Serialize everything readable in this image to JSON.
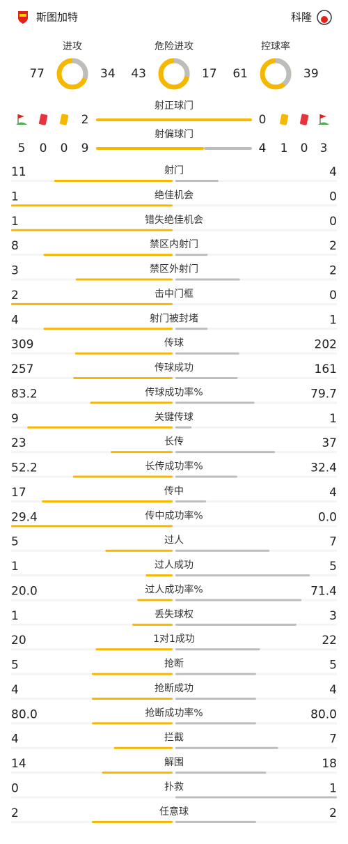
{
  "header": {
    "home": "斯图加特",
    "away": "科隆"
  },
  "donuts": [
    {
      "label": "进攻",
      "home": 77,
      "away": 34
    },
    {
      "label": "危险进攻",
      "home": 43,
      "away": 17
    },
    {
      "label": "控球率",
      "home": 61,
      "away": 39
    }
  ],
  "cards": {
    "home": {
      "corners": 5,
      "red": 0,
      "yellow": 0
    },
    "away": {
      "yellow": 1,
      "red": 0,
      "corners": 3
    }
  },
  "shots": [
    {
      "label": "射正球门",
      "home": 2,
      "away": 0
    },
    {
      "label": "射偏球门",
      "home": 9,
      "away": 4
    }
  ],
  "stats": [
    {
      "label": "射门",
      "home": 11,
      "away": 4
    },
    {
      "label": "绝佳机会",
      "home": 1,
      "away": 0
    },
    {
      "label": "错失绝佳机会",
      "home": 1,
      "away": 0
    },
    {
      "label": "禁区内射门",
      "home": 8,
      "away": 2
    },
    {
      "label": "禁区外射门",
      "home": 3,
      "away": 2
    },
    {
      "label": "击中门框",
      "home": 2,
      "away": 0
    },
    {
      "label": "射门被封堵",
      "home": 4,
      "away": 1
    },
    {
      "label": "传球",
      "home": 309,
      "away": 202
    },
    {
      "label": "传球成功",
      "home": 257,
      "away": 161
    },
    {
      "label": "传球成功率%",
      "home": 83.2,
      "away": 79.7
    },
    {
      "label": "关键传球",
      "home": 9,
      "away": 1
    },
    {
      "label": "长传",
      "home": 23,
      "away": 37
    },
    {
      "label": "长传成功率%",
      "home": 52.2,
      "away": 32.4
    },
    {
      "label": "传中",
      "home": 17,
      "away": 4
    },
    {
      "label": "传中成功率%",
      "home": 29.4,
      "away": 0,
      "away_label": "0.0"
    },
    {
      "label": "过人",
      "home": 5,
      "away": 7
    },
    {
      "label": "过人成功",
      "home": 1,
      "away": 5
    },
    {
      "label": "过人成功率%",
      "home": 20,
      "home_label": "20.0",
      "away": 71.4
    },
    {
      "label": "丢失球权",
      "home": 1,
      "away": 3
    },
    {
      "label": "1对1成功",
      "home": 20,
      "away": 22
    },
    {
      "label": "抢断",
      "home": 5,
      "away": 5
    },
    {
      "label": "抢断成功",
      "home": 4,
      "away": 4
    },
    {
      "label": "抢断成功率%",
      "home": 80,
      "home_label": "80.0",
      "away": 80,
      "away_label": "80.0"
    },
    {
      "label": "拦截",
      "home": 4,
      "away": 7
    },
    {
      "label": "解围",
      "home": 14,
      "away": 18
    },
    {
      "label": "扑救",
      "home": 0,
      "away": 1
    },
    {
      "label": "任意球",
      "home": 2,
      "away": 2
    }
  ]
}
